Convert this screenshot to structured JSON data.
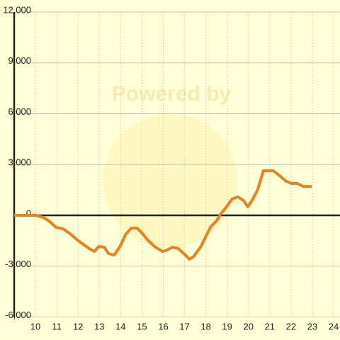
{
  "chart_data": {
    "type": "line",
    "watermark": "Powered by",
    "x": [
      9,
      10,
      10.37,
      10.63,
      10.97,
      11.3,
      11.63,
      11.97,
      12.3,
      12.57,
      12.77,
      12.97,
      13.23,
      13.43,
      13.7,
      13.97,
      14.23,
      14.5,
      14.77,
      15.03,
      15.3,
      15.63,
      15.97,
      16.17,
      16.43,
      16.7,
      16.97,
      17.23,
      17.43,
      17.77,
      18.03,
      18.23,
      18.5,
      18.7,
      18.97,
      19.23,
      19.5,
      19.77,
      19.97,
      20.17,
      20.43,
      20.7,
      21.17,
      21.5,
      21.77,
      22.03,
      22.3,
      22.57,
      22.97
    ],
    "series": [
      {
        "color": "#e8821e",
        "values": [
          0,
          0,
          -125,
          -330,
          -710,
          -800,
          -1090,
          -1460,
          -1760,
          -2000,
          -2130,
          -1840,
          -1880,
          -2260,
          -2340,
          -1840,
          -1130,
          -750,
          -750,
          -1090,
          -1500,
          -1880,
          -2130,
          -2050,
          -1880,
          -1960,
          -2260,
          -2590,
          -2420,
          -1840,
          -1170,
          -670,
          -330,
          80,
          500,
          960,
          1090,
          880,
          500,
          880,
          1500,
          2630,
          2630,
          2300,
          2010,
          1880,
          1880,
          1710,
          1710
        ]
      }
    ],
    "xlim": [
      9,
      24.3
    ],
    "xticks": [
      10,
      11,
      12,
      13,
      14,
      15,
      16,
      17,
      18,
      19,
      20,
      21,
      22,
      23,
      24
    ],
    "ylim": [
      -6000,
      12000
    ],
    "yticks": [
      {
        "value": 12000,
        "label": "12,000"
      },
      {
        "value": 9000,
        "label": "9,000"
      },
      {
        "value": 6000,
        "label": "6,000"
      },
      {
        "value": 3000,
        "label": "3,000"
      },
      0,
      {
        "value": -3000,
        "label": "-3,000"
      },
      {
        "value": -6000,
        "label": "-6,000"
      }
    ],
    "grid": true
  }
}
